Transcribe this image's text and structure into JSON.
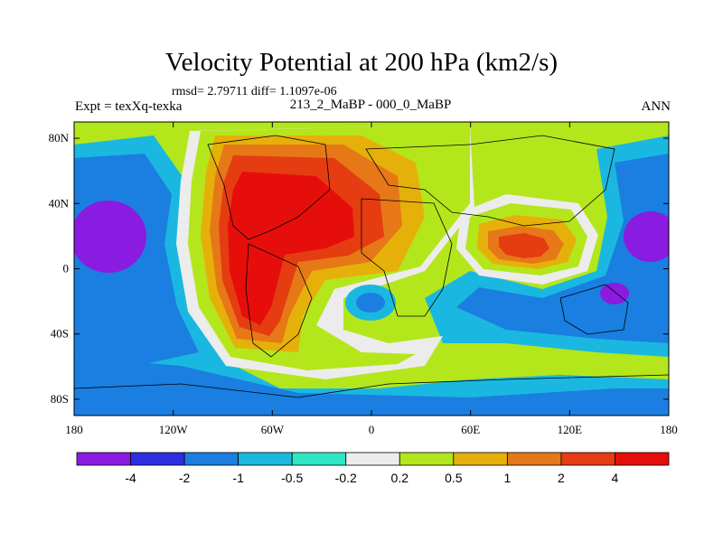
{
  "header": {
    "title": "Velocity Potential at 200 hPa (km2/s)",
    "stats": "rmsd= 2.79711 diff= 1.1097e-06",
    "left_label": "Expt = texXq-texka",
    "center_label": "213_2_MaBP - 000_0_MaBP",
    "right_label": "ANN"
  },
  "chart_data": {
    "type": "heatmap",
    "title": "Velocity Potential at 200 hPa (km2/s)",
    "x_ticks": [
      "180",
      "120W",
      "60W",
      "0",
      "60E",
      "120E",
      "180"
    ],
    "y_ticks": [
      "80N",
      "40N",
      "0",
      "40S",
      "80S"
    ],
    "lon_range": [
      -180,
      180
    ],
    "lat_range": [
      -90,
      90
    ],
    "colorbar": {
      "labels": [
        "-4",
        "-2",
        "-1",
        "-0.5",
        "-0.2",
        "0.2",
        "0.5",
        "1",
        "2",
        "4"
      ],
      "colors": [
        "#8a1be0",
        "#2e2ee0",
        "#1a7fe0",
        "#1ab8e0",
        "#2ee6c2",
        "#ececec",
        "#b4e61c",
        "#e6b00a",
        "#e67818",
        "#e63c12",
        "#e60e0a"
      ]
    },
    "level_colors": {
      "n4": "#8a1be0",
      "n3": "#2e2ee0",
      "n2": "#1a7fe0",
      "n1": "#1ab8e0",
      "n0": "#2ee6c2",
      "z": "#ececec",
      "p1": "#b4e61c",
      "p2": "#e6b00a",
      "p3": "#e67818",
      "p4": "#e63c12",
      "p5": "#e60e0a"
    }
  }
}
